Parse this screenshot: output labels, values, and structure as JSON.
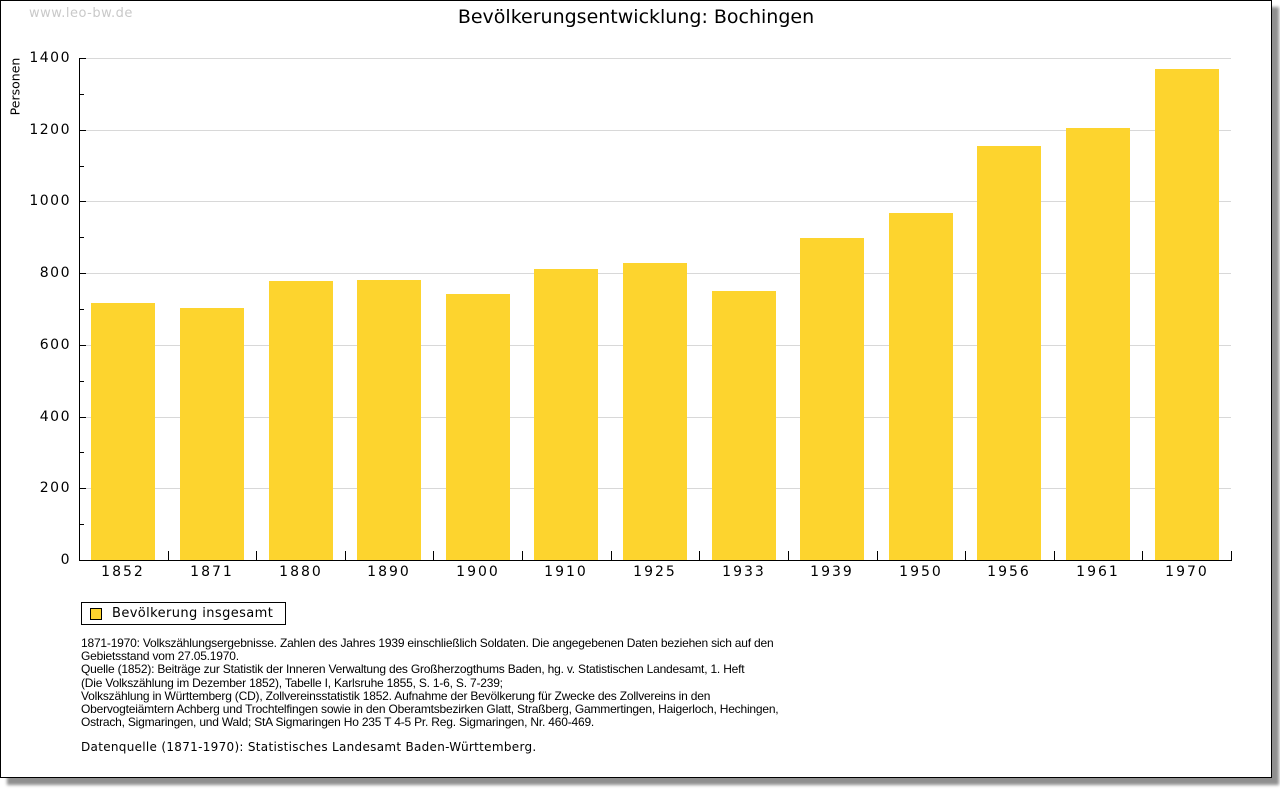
{
  "watermark": "www.leo-bw.de",
  "title": "Bevölkerungsentwicklung: Bochingen",
  "legend": {
    "label": "Bevölkerung insgesamt"
  },
  "chart_data": {
    "type": "bar",
    "title": "Bevölkerungsentwicklung: Bochingen",
    "categories": [
      "1852",
      "1871",
      "1880",
      "1890",
      "1900",
      "1910",
      "1925",
      "1933",
      "1939",
      "1950",
      "1956",
      "1961",
      "1970"
    ],
    "values": [
      718,
      704,
      778,
      782,
      741,
      812,
      829,
      750,
      897,
      969,
      1155,
      1204,
      1368
    ],
    "series_name": "Bevölkerung insgesamt",
    "xlabel": "",
    "ylabel": "Personen",
    "ylim": [
      0,
      1400
    ],
    "y_tick_step": 200,
    "y_minor_tick_step": 100,
    "grid": true,
    "legend_position": "bottom-left",
    "bar_color": "#fdd42e"
  },
  "footer": {
    "lines": [
      "1871-1970: Volkszählungsergebnisse. Zahlen des Jahres 1939 einschließlich Soldaten. Die angegebenen Daten beziehen sich auf den",
      "Gebietsstand vom 27.05.1970.",
      "Quelle (1852): Beiträge zur Statistik der Inneren Verwaltung des Großherzogthums Baden, hg. v. Statistischen Landesamt, 1. Heft",
      "(Die Volkszählung im Dezember 1852), Tabelle I, Karlsruhe 1855, S. 1-6, S. 7-239;",
      "Volkszählung in Württemberg (CD), Zollvereinsstatistik 1852. Aufnahme der Bevölkerung für Zwecke des Zollvereins in den",
      "Obervogteiämtern Achberg und Trochtelfingen sowie in den Oberamtsbezirken Glatt, Straßberg, Gammertingen, Haigerloch, Hechingen,",
      "Ostrach, Sigmaringen, und Wald; StA Sigmaringen Ho 235 T 4-5 Pr. Reg. Sigmaringen, Nr. 460-469."
    ],
    "datasource": "Datenquelle (1871-1970): Statistisches Landesamt Baden-Württemberg."
  },
  "colors": {
    "bar": "#fdd42e",
    "grid": "#d8d8d8",
    "axis": "#000000",
    "watermark": "#c9c9c9"
  }
}
